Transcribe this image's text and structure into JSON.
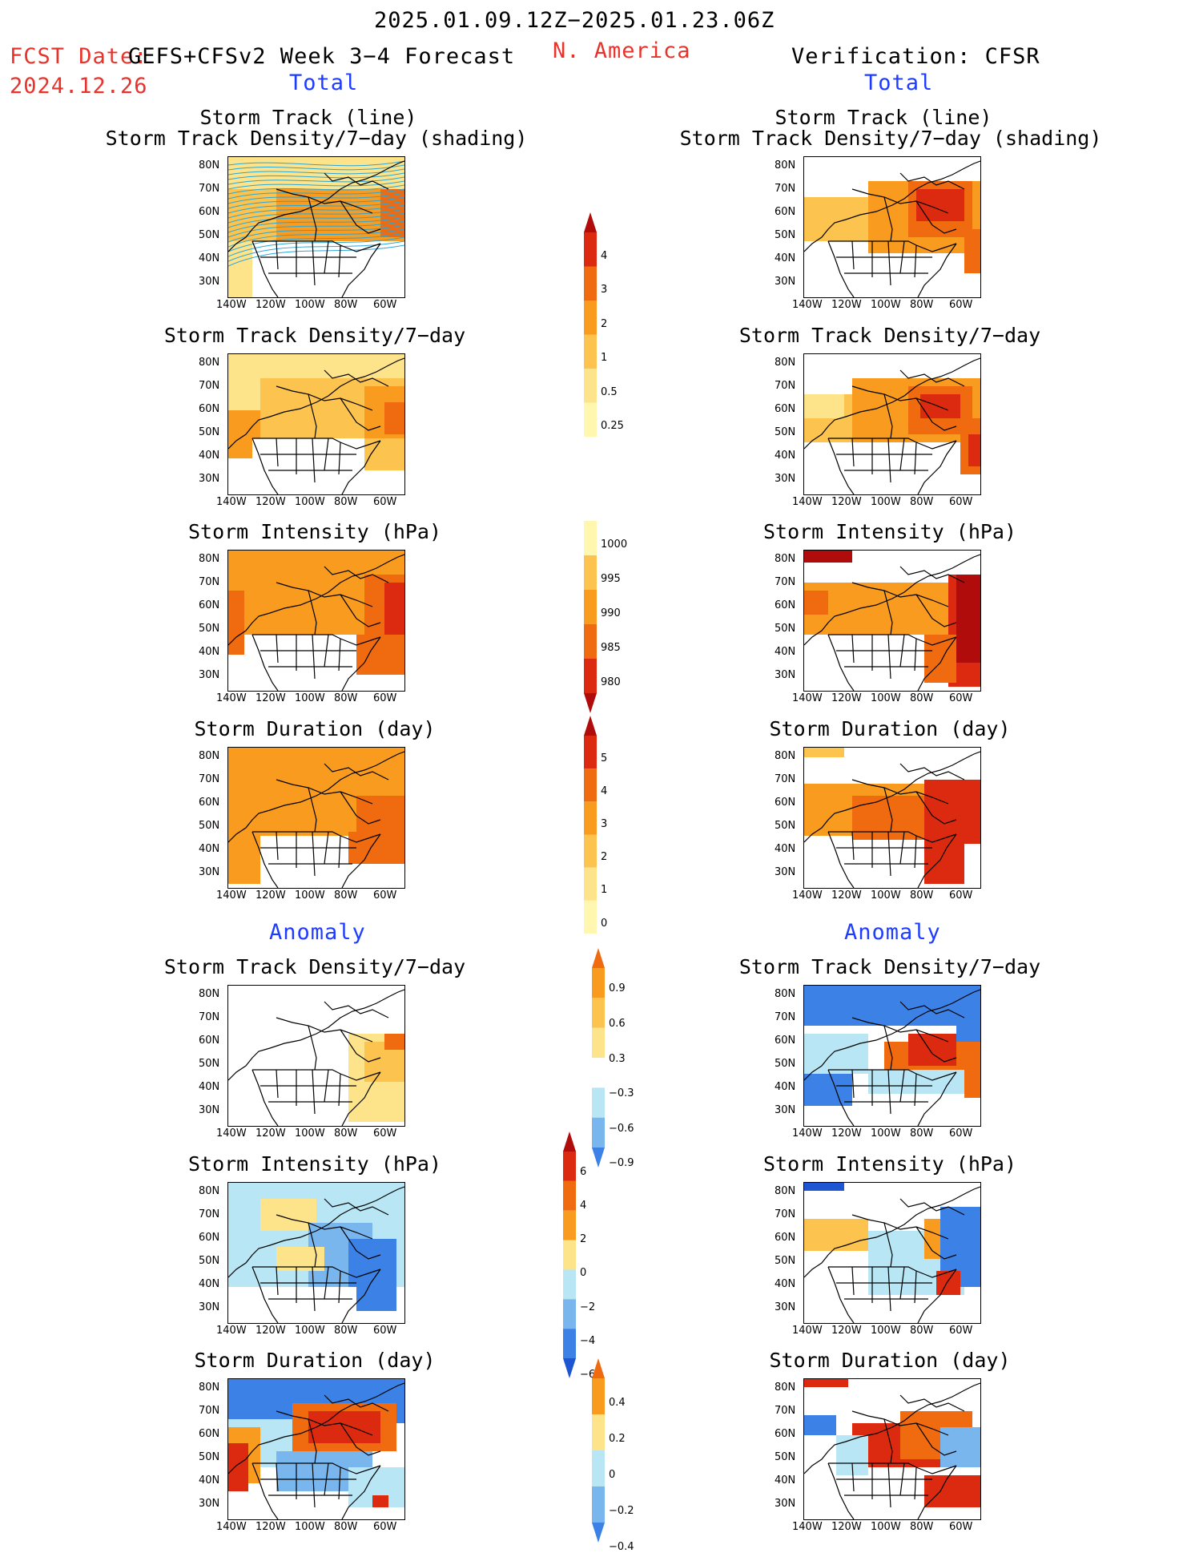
{
  "header": {
    "period": "2025.01.09.12Z−2025.01.23.06Z",
    "fcst_label": "FCST Date:",
    "fcst_model": "GEFS+CFSv2 Week 3−4 Forecast",
    "fcst_date": "2024.12.26",
    "region": "N. America",
    "verification": "Verification: CFSR",
    "total_left": "Total",
    "total_right": "Total",
    "anomaly_left": "Anomaly",
    "anomaly_right": "Anomaly"
  },
  "panel_titles": {
    "track_line": "Storm Track (line)",
    "track_shading": "Storm Track Density/7−day (shading)",
    "density": "Storm Track Density/7−day",
    "intensity": "Storm Intensity (hPa)",
    "duration": "Storm Duration (day)"
  },
  "axes": {
    "y_ticks": [
      "80N",
      "70N",
      "60N",
      "50N",
      "40N",
      "30N"
    ],
    "x_ticks": [
      "140W",
      "120W",
      "100W",
      "80W",
      "60W"
    ]
  },
  "colorbars": {
    "density_total": [
      "4",
      "3",
      "2",
      "1",
      "0.5",
      "0.25"
    ],
    "intensity_total": [
      "1000",
      "995",
      "990",
      "985",
      "980"
    ],
    "duration_total": [
      "5",
      "4",
      "3",
      "2",
      "1",
      "0"
    ],
    "density_anom": [
      "0.9",
      "0.6",
      "0.3",
      "−0.3",
      "−0.6",
      "−0.9"
    ],
    "intensity_anom": [
      "6",
      "4",
      "2",
      "0",
      "−2",
      "−4",
      "−6"
    ],
    "duration_anom": [
      "0.4",
      "0.2",
      "0",
      "−0.2",
      "−0.4"
    ]
  },
  "colors": {
    "pale_yellow": "#fff7b0",
    "yellow": "#fde48a",
    "light_orange": "#fcc44e",
    "orange": "#f99b1e",
    "dark_orange": "#f06a10",
    "red": "#db2a10",
    "dark_red": "#b00c0c",
    "light_blue": "#b8e6f5",
    "mid_blue": "#7ab6ee",
    "blue": "#3c82e6",
    "dark_blue": "#1e55d2",
    "track_line": "#29a6d9"
  }
}
